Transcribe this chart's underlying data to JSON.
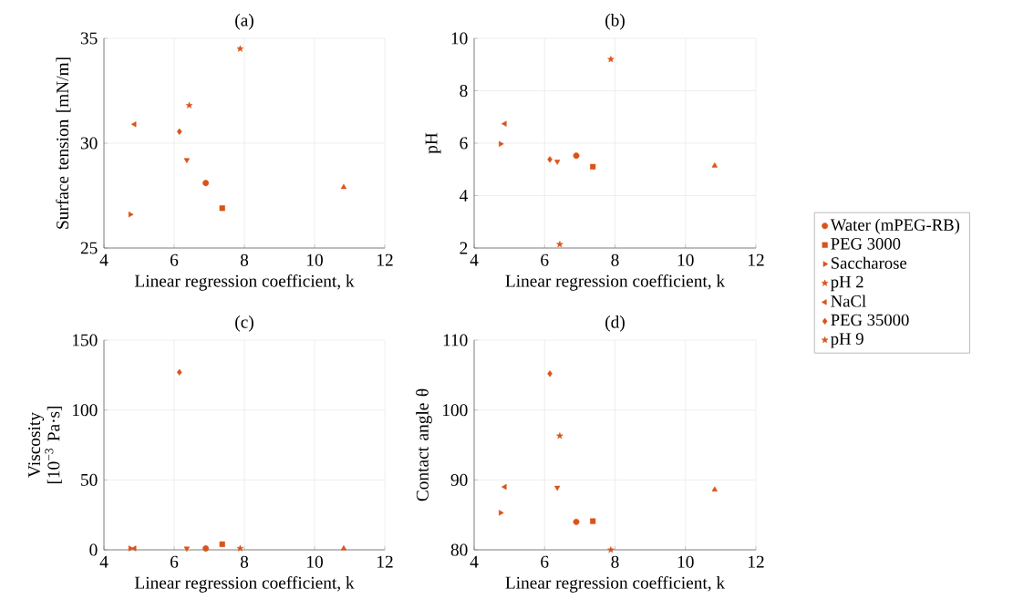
{
  "chart_data": [
    {
      "type": "scatter",
      "title": "(a)",
      "xlabel": "Linear regression coefficient, k",
      "ylabel": "Surface tension [mN/m]",
      "xlim": [
        4,
        12
      ],
      "ylim": [
        25,
        35
      ],
      "xticks": [
        4,
        6,
        8,
        10,
        12
      ],
      "yticks": [
        25,
        30,
        35
      ],
      "grid": true,
      "series": [
        {
          "color": "#d95319",
          "marker": "circle",
          "x": [
            6.9
          ],
          "values": [
            28.1
          ]
        },
        {
          "color": "#d95319",
          "marker": "square",
          "x": [
            7.37
          ],
          "values": [
            26.9
          ]
        },
        {
          "color": "#d95319",
          "marker": "triangle-down",
          "x": [
            6.36
          ],
          "values": [
            29.2
          ]
        },
        {
          "color": "#d95319",
          "marker": "triangle",
          "x": [
            10.83
          ],
          "values": [
            27.9
          ]
        },
        {
          "color": "#d95319",
          "marker": "triangle-right",
          "x": [
            4.75
          ],
          "values": [
            26.6
          ]
        },
        {
          "color": "#d95319",
          "marker": "star",
          "x": [
            6.43
          ],
          "values": [
            31.8
          ]
        },
        {
          "color": "#d95319",
          "marker": "triangle-left",
          "x": [
            4.87
          ],
          "values": [
            30.9
          ]
        },
        {
          "color": "#d95319",
          "marker": "diamond",
          "x": [
            6.15
          ],
          "values": [
            30.55
          ]
        },
        {
          "color": "#d95319",
          "marker": "star",
          "x": [
            7.88
          ],
          "values": [
            34.5
          ]
        }
      ]
    },
    {
      "type": "scatter",
      "title": "(b)",
      "xlabel": "Linear regression coefficient, k",
      "ylabel": "pH",
      "xlim": [
        4,
        12
      ],
      "ylim": [
        2,
        10
      ],
      "xticks": [
        4,
        6,
        8,
        10,
        12
      ],
      "yticks": [
        2,
        4,
        6,
        8,
        10
      ],
      "grid": true,
      "legend": "right",
      "series": [
        {
          "name": "Water (mPEG-RB)",
          "color": "#d95319",
          "marker": "circle",
          "x": [
            6.9
          ],
          "values": [
            5.52
          ]
        },
        {
          "name": "PEG 3000",
          "color": "#d95319",
          "marker": "square",
          "x": [
            7.37
          ],
          "values": [
            5.1
          ]
        },
        {
          "color": "#d95319",
          "marker": "triangle-down",
          "x": [
            6.36
          ],
          "values": [
            5.3
          ]
        },
        {
          "color": "#d95319",
          "marker": "triangle",
          "x": [
            10.83
          ],
          "values": [
            5.14
          ]
        },
        {
          "name": "Saccharose",
          "color": "#d95319",
          "marker": "triangle-right",
          "x": [
            4.75
          ],
          "values": [
            5.97
          ]
        },
        {
          "name": "pH 2",
          "color": "#d95319",
          "marker": "star",
          "x": [
            6.43
          ],
          "values": [
            2.14
          ]
        },
        {
          "name": "NaCl",
          "color": "#d95319",
          "marker": "triangle-left",
          "x": [
            4.87
          ],
          "values": [
            6.74
          ]
        },
        {
          "name": "PEG 35000",
          "color": "#d95319",
          "marker": "diamond",
          "x": [
            6.15
          ],
          "values": [
            5.38
          ]
        },
        {
          "name": "pH 9",
          "color": "#d95319",
          "marker": "star",
          "x": [
            7.88
          ],
          "values": [
            9.2
          ]
        }
      ]
    },
    {
      "type": "scatter",
      "title": "(c)",
      "xlabel": "Linear regression coefficient, k",
      "ylabel": "Viscosity [10$^{−3}$ Pa·s]",
      "xlim": [
        4,
        12
      ],
      "ylim": [
        0,
        150
      ],
      "xticks": [
        4,
        6,
        8,
        10,
        12
      ],
      "yticks": [
        0,
        50,
        100,
        150
      ],
      "grid": true,
      "series": [
        {
          "color": "#d95319",
          "marker": "circle",
          "x": [
            6.9
          ],
          "values": [
            1
          ]
        },
        {
          "color": "#d95319",
          "marker": "square",
          "x": [
            7.37
          ],
          "values": [
            4
          ]
        },
        {
          "color": "#d95319",
          "marker": "triangle-down",
          "x": [
            6.36
          ],
          "values": [
            1
          ]
        },
        {
          "color": "#d95319",
          "marker": "triangle",
          "x": [
            10.83
          ],
          "values": [
            1
          ]
        },
        {
          "color": "#d95319",
          "marker": "triangle-right",
          "x": [
            4.75
          ],
          "values": [
            1
          ]
        },
        {
          "color": "#d95319",
          "marker": "triangle-left",
          "x": [
            4.87
          ],
          "values": [
            1
          ]
        },
        {
          "color": "#d95319",
          "marker": "diamond",
          "x": [
            6.15
          ],
          "values": [
            127
          ]
        },
        {
          "color": "#d95319",
          "marker": "star",
          "x": [
            7.88
          ],
          "values": [
            1
          ]
        }
      ]
    },
    {
      "type": "scatter",
      "title": "(d)",
      "xlabel": "Linear regression coefficient, k",
      "ylabel": "Contact angle θ",
      "xlim": [
        4,
        12
      ],
      "ylim": [
        80,
        110
      ],
      "xticks": [
        4,
        6,
        8,
        10,
        12
      ],
      "yticks": [
        80,
        90,
        100,
        110
      ],
      "grid": true,
      "series": [
        {
          "color": "#d95319",
          "marker": "circle",
          "x": [
            6.9
          ],
          "values": [
            84
          ]
        },
        {
          "color": "#d95319",
          "marker": "square",
          "x": [
            7.37
          ],
          "values": [
            84.1
          ]
        },
        {
          "color": "#d95319",
          "marker": "triangle-down",
          "x": [
            6.36
          ],
          "values": [
            88.9
          ]
        },
        {
          "color": "#d95319",
          "marker": "triangle",
          "x": [
            10.83
          ],
          "values": [
            88.6
          ]
        },
        {
          "color": "#d95319",
          "marker": "triangle-right",
          "x": [
            4.75
          ],
          "values": [
            85.3
          ]
        },
        {
          "color": "#d95319",
          "marker": "star",
          "x": [
            6.43
          ],
          "values": [
            96.3
          ]
        },
        {
          "color": "#d95319",
          "marker": "triangle-left",
          "x": [
            4.87
          ],
          "values": [
            89
          ]
        },
        {
          "color": "#d95319",
          "marker": "diamond",
          "x": [
            6.15
          ],
          "values": [
            105.2
          ]
        },
        {
          "color": "#d95319",
          "marker": "star",
          "x": [
            7.88
          ],
          "values": [
            80
          ]
        }
      ]
    }
  ]
}
